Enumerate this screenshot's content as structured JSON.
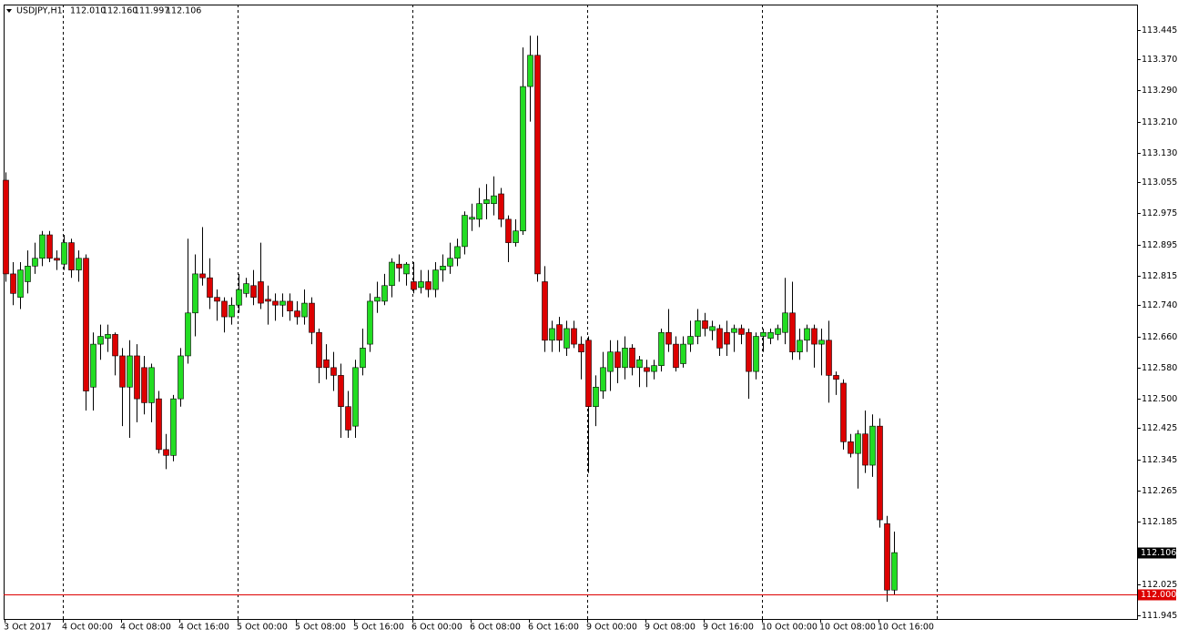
{
  "chart_data": {
    "type": "candlestick",
    "symbol": "USDJPY,H1",
    "header_values": [
      "112.010",
      "112.160",
      "111.997",
      "112.106"
    ],
    "categories": [
      "3 Oct 2017",
      null,
      null,
      null,
      null,
      null,
      null,
      null,
      "4 Oct 00:00",
      null,
      null,
      null,
      null,
      null,
      null,
      null,
      "4 Oct 08:00",
      null,
      null,
      null,
      null,
      null,
      null,
      null,
      "4 Oct 16:00",
      null,
      null,
      null,
      null,
      null,
      null,
      null,
      "5 Oct 00:00",
      null,
      null,
      null,
      null,
      null,
      null,
      null,
      "5 Oct 08:00",
      null,
      null,
      null,
      null,
      null,
      null,
      null,
      "5 Oct 16:00",
      null,
      null,
      null,
      null,
      null,
      null,
      null,
      "6 Oct 00:00",
      null,
      null,
      null,
      null,
      null,
      null,
      null,
      "6 Oct 08:00",
      null,
      null,
      null,
      null,
      null,
      null,
      null,
      "6 Oct 16:00",
      null,
      null,
      null,
      null,
      null,
      null,
      null,
      "9 Oct 00:00",
      null,
      null,
      null,
      null,
      null,
      null,
      null,
      "9 Oct 08:00",
      null,
      null,
      null,
      null,
      null,
      null,
      null,
      "9 Oct 16:00",
      null,
      null,
      null,
      null,
      null,
      null,
      null,
      "10 Oct 00:00",
      null,
      null,
      null,
      null,
      null,
      null,
      null,
      "10 Oct 08:00",
      null,
      null,
      null,
      null,
      null,
      null,
      null,
      "10 Oct 16:00",
      null,
      null
    ],
    "open": [
      113.06,
      112.82,
      112.76,
      112.8,
      112.84,
      112.86,
      112.92,
      112.86,
      112.845,
      112.9,
      112.83,
      112.86,
      112.53,
      112.64,
      112.655,
      112.665,
      112.61,
      112.53,
      112.61,
      112.58,
      112.49,
      112.5,
      112.37,
      112.355,
      112.5,
      112.61,
      112.72,
      112.82,
      112.81,
      112.76,
      112.75,
      112.71,
      112.74,
      112.77,
      112.79,
      112.8,
      112.755,
      112.75,
      112.74,
      112.75,
      112.725,
      112.71,
      112.745,
      112.67,
      112.6,
      112.58,
      112.56,
      112.48,
      112.43,
      112.58,
      112.64,
      112.75,
      112.75,
      112.79,
      112.845,
      112.82,
      112.8,
      112.785,
      112.8,
      112.78,
      112.83,
      112.84,
      112.86,
      112.89,
      112.96,
      112.96,
      113.0,
      113.0,
      113.025,
      112.96,
      112.9,
      112.93,
      113.3,
      113.38,
      112.8,
      112.65,
      112.69,
      112.63,
      112.68,
      112.64,
      112.65,
      112.48,
      112.52,
      112.57,
      112.62,
      112.58,
      112.63,
      112.58,
      112.58,
      112.57,
      112.585,
      112.67,
      112.64,
      112.59,
      112.64,
      112.66,
      112.7,
      112.675,
      112.68,
      112.67,
      112.67,
      112.68,
      112.67,
      112.57,
      112.66,
      112.655,
      112.665,
      112.67,
      112.72,
      112.62,
      112.65,
      112.68,
      112.64,
      112.65,
      112.56,
      112.54,
      112.39,
      112.36,
      112.41,
      112.33,
      112.43,
      112.18,
      112.01
    ],
    "high": [
      113.08,
      112.85,
      112.85,
      112.88,
      112.9,
      112.93,
      112.93,
      112.88,
      112.92,
      112.91,
      112.88,
      112.87,
      112.67,
      112.69,
      112.69,
      112.67,
      112.63,
      112.65,
      112.64,
      112.61,
      112.59,
      112.52,
      112.41,
      112.51,
      112.63,
      112.91,
      112.87,
      112.94,
      112.86,
      112.78,
      112.76,
      112.76,
      112.82,
      112.81,
      112.83,
      112.9,
      112.79,
      112.77,
      112.77,
      112.77,
      112.75,
      112.78,
      112.76,
      112.68,
      112.64,
      112.62,
      112.59,
      112.52,
      112.6,
      112.68,
      112.77,
      112.8,
      112.82,
      112.86,
      112.87,
      112.85,
      112.85,
      112.83,
      112.83,
      112.85,
      112.87,
      112.9,
      112.91,
      112.98,
      113.0,
      113.04,
      113.05,
      113.07,
      113.04,
      112.97,
      112.96,
      113.4,
      113.43,
      113.43,
      112.84,
      112.7,
      112.71,
      112.7,
      112.7,
      112.66,
      112.66,
      112.56,
      112.62,
      112.65,
      112.65,
      112.66,
      112.64,
      112.61,
      112.6,
      112.6,
      112.68,
      112.73,
      112.66,
      112.66,
      112.7,
      112.73,
      112.72,
      112.7,
      112.69,
      112.7,
      112.69,
      112.69,
      112.68,
      112.67,
      112.68,
      112.68,
      112.69,
      112.81,
      112.8,
      112.68,
      112.69,
      112.69,
      112.68,
      112.7,
      112.57,
      112.55,
      112.41,
      112.42,
      112.47,
      112.46,
      112.45,
      112.2,
      112.16
    ],
    "low": [
      112.8,
      112.74,
      112.73,
      112.77,
      112.82,
      112.84,
      112.85,
      112.83,
      112.83,
      112.81,
      112.8,
      112.47,
      112.47,
      112.6,
      112.62,
      112.56,
      112.43,
      112.4,
      112.44,
      112.46,
      112.44,
      112.36,
      112.32,
      112.34,
      112.48,
      112.59,
      112.66,
      112.79,
      112.73,
      112.7,
      112.67,
      112.69,
      112.72,
      112.76,
      112.74,
      112.73,
      112.69,
      112.7,
      112.71,
      112.7,
      112.69,
      112.69,
      112.64,
      112.54,
      112.55,
      112.52,
      112.4,
      112.4,
      112.4,
      112.56,
      112.62,
      112.72,
      112.74,
      112.76,
      112.8,
      112.79,
      112.77,
      112.77,
      112.76,
      112.76,
      112.8,
      112.82,
      112.84,
      112.87,
      112.93,
      112.94,
      112.96,
      112.97,
      112.94,
      112.85,
      112.89,
      112.92,
      113.21,
      112.8,
      112.62,
      112.62,
      112.62,
      112.61,
      112.63,
      112.55,
      112.31,
      112.43,
      112.5,
      112.52,
      112.54,
      112.55,
      112.56,
      112.53,
      112.53,
      112.55,
      112.57,
      112.62,
      112.57,
      112.58,
      112.62,
      112.64,
      112.66,
      112.65,
      112.61,
      112.61,
      112.62,
      112.64,
      112.5,
      112.55,
      112.62,
      112.64,
      112.65,
      112.64,
      112.6,
      112.6,
      112.62,
      112.58,
      112.56,
      112.49,
      112.51,
      112.37,
      112.35,
      112.27,
      112.31,
      112.3,
      112.17,
      111.98,
      111.997
    ],
    "close": [
      112.82,
      112.77,
      112.83,
      112.84,
      112.86,
      112.92,
      112.86,
      112.855,
      112.9,
      112.83,
      112.86,
      112.52,
      112.64,
      112.66,
      112.665,
      112.61,
      112.53,
      112.61,
      112.5,
      112.49,
      112.58,
      112.37,
      112.355,
      112.5,
      112.61,
      112.72,
      112.82,
      112.81,
      112.76,
      112.75,
      112.71,
      112.74,
      112.78,
      112.795,
      112.76,
      112.745,
      112.75,
      112.74,
      112.75,
      112.725,
      112.71,
      112.745,
      112.67,
      112.58,
      112.58,
      112.56,
      112.48,
      112.42,
      112.58,
      112.63,
      112.75,
      112.76,
      112.79,
      112.85,
      112.835,
      112.845,
      112.78,
      112.8,
      112.78,
      112.83,
      112.84,
      112.86,
      112.89,
      112.97,
      112.965,
      113.0,
      113.01,
      113.02,
      112.96,
      112.9,
      112.93,
      113.3,
      113.38,
      112.82,
      112.65,
      112.68,
      112.65,
      112.68,
      112.64,
      112.62,
      112.48,
      112.53,
      112.58,
      112.62,
      112.58,
      112.63,
      112.58,
      112.6,
      112.57,
      112.585,
      112.67,
      112.64,
      112.58,
      112.64,
      112.66,
      112.7,
      112.68,
      112.685,
      112.63,
      112.64,
      112.68,
      112.665,
      112.57,
      112.66,
      112.67,
      112.67,
      112.68,
      112.72,
      112.62,
      112.65,
      112.68,
      112.64,
      112.65,
      112.56,
      112.55,
      112.39,
      112.36,
      112.41,
      112.33,
      112.43,
      112.19,
      112.01,
      112.106
    ],
    "up_color": "#22dd22",
    "down_color": "#dd0000",
    "wick_color": "#000000",
    "ylim": [
      111.936,
      113.51
    ],
    "yticks": [
      113.445,
      {
        "value": 113.37,
        "label": "113.370"
      },
      {
        "value": 113.29,
        "label": "113.290"
      },
      {
        "value": 113.21,
        "label": "113.210"
      },
      {
        "value": 113.13,
        "label": "113.130"
      },
      113.055,
      112.975,
      112.895,
      112.815,
      {
        "value": 112.74,
        "label": "112.740"
      },
      {
        "value": 112.66,
        "label": "112.660"
      },
      {
        "value": 112.58,
        "label": "112.580"
      },
      {
        "value": 112.5,
        "label": "112.500"
      },
      112.425,
      112.345,
      112.265,
      112.185,
      112.025,
      111.945
    ],
    "last_price": {
      "value": 112.106,
      "label": "112.106",
      "color": "#000000"
    },
    "level_line": {
      "value": 112.0,
      "label": "112.000",
      "color": "#dd0000"
    }
  }
}
